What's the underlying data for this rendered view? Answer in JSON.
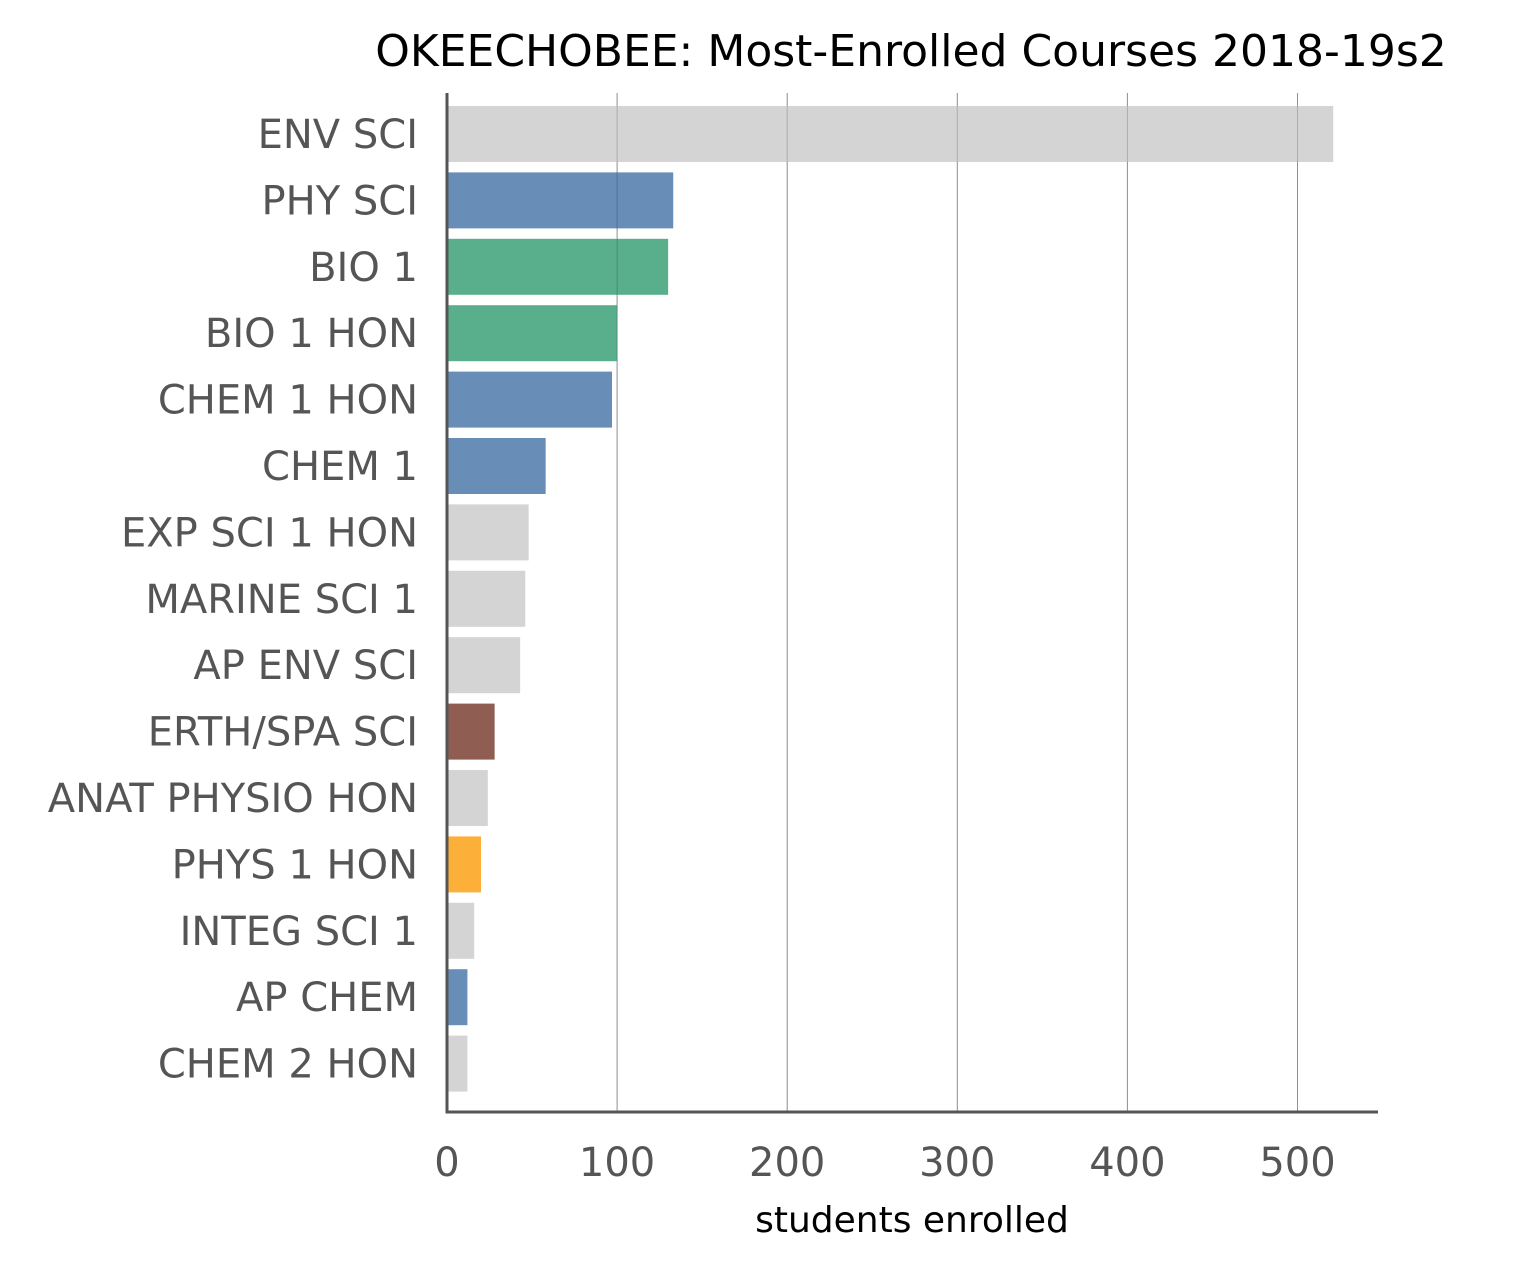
{
  "chart_data": {
    "type": "bar",
    "orientation": "horizontal",
    "title": "OKEECHOBEE: Most-Enrolled Courses 2018-19s2",
    "xlabel": "students enrolled",
    "ylabel": "",
    "xlim": [
      0,
      550
    ],
    "xticks": [
      0,
      100,
      200,
      300,
      400,
      500
    ],
    "grid": "vertical",
    "categories": [
      "ENV SCI",
      "PHY SCI",
      "BIO 1",
      "BIO 1 HON",
      "CHEM 1 HON",
      "CHEM 1",
      "EXP SCI 1 HON",
      "MARINE SCI 1",
      "AP ENV SCI",
      "ERTH/SPA SCI",
      "ANAT PHYSIO HON",
      "PHYS 1 HON",
      "INTEG SCI 1",
      "AP CHEM",
      "CHEM 2 HON"
    ],
    "values": [
      521,
      133,
      130,
      100,
      97,
      58,
      48,
      46,
      43,
      28,
      24,
      20,
      16,
      12,
      12
    ],
    "colors": [
      "#d3d3d3",
      "#6389b5",
      "#54ac88",
      "#54ac88",
      "#6389b5",
      "#6389b5",
      "#d3d3d3",
      "#d3d3d3",
      "#d3d3d3",
      "#8b584b",
      "#d3d3d3",
      "#fdad33",
      "#d3d3d3",
      "#6389b5",
      "#d3d3d3"
    ]
  }
}
